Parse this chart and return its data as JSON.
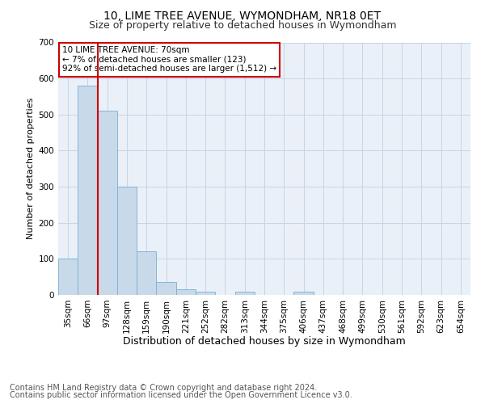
{
  "title1": "10, LIME TREE AVENUE, WYMONDHAM, NR18 0ET",
  "title2": "Size of property relative to detached houses in Wymondham",
  "xlabel": "Distribution of detached houses by size in Wymondham",
  "ylabel": "Number of detached properties",
  "categories": [
    "35sqm",
    "66sqm",
    "97sqm",
    "128sqm",
    "159sqm",
    "190sqm",
    "221sqm",
    "252sqm",
    "282sqm",
    "313sqm",
    "344sqm",
    "375sqm",
    "406sqm",
    "437sqm",
    "468sqm",
    "499sqm",
    "530sqm",
    "561sqm",
    "592sqm",
    "623sqm",
    "654sqm"
  ],
  "values": [
    100,
    580,
    510,
    300,
    120,
    35,
    15,
    8,
    0,
    8,
    0,
    0,
    8,
    0,
    0,
    0,
    0,
    0,
    0,
    0,
    0
  ],
  "bar_color": "#c8daea",
  "bar_edge_color": "#7aaed4",
  "highlight_color": "#cc0000",
  "annotation_text": "10 LIME TREE AVENUE: 70sqm\n← 7% of detached houses are smaller (123)\n92% of semi-detached houses are larger (1,512) →",
  "annotation_box_color": "#ffffff",
  "annotation_box_edge_color": "#cc0000",
  "ylim": [
    0,
    700
  ],
  "yticks": [
    0,
    100,
    200,
    300,
    400,
    500,
    600,
    700
  ],
  "footer1": "Contains HM Land Registry data © Crown copyright and database right 2024.",
  "footer2": "Contains public sector information licensed under the Open Government Licence v3.0.",
  "background_color": "#ffffff",
  "plot_bg_color": "#eaf0f8",
  "grid_color": "#c8d4e4",
  "title1_fontsize": 10,
  "title2_fontsize": 9,
  "xlabel_fontsize": 9,
  "ylabel_fontsize": 8,
  "tick_fontsize": 7.5,
  "footer_fontsize": 7
}
